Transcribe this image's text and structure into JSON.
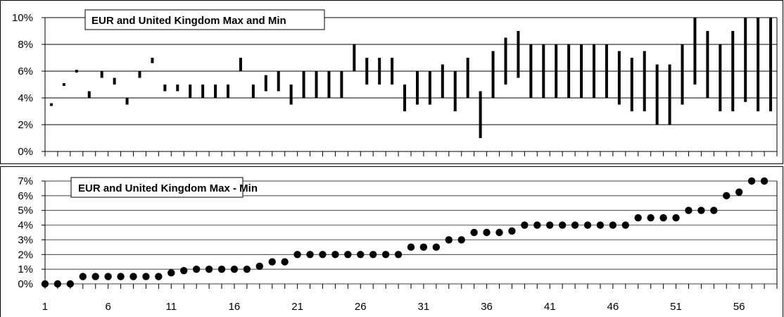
{
  "chart_data": [
    {
      "type": "range-bar",
      "title": "EUR and United Kingdom Max and Min",
      "xlabel": "",
      "ylabel": "",
      "ylim": [
        0,
        10
      ],
      "yticks": [
        "0%",
        "2%",
        "4%",
        "6%",
        "8%",
        "10%"
      ],
      "grid": true,
      "x": [
        1,
        2,
        3,
        4,
        5,
        6,
        7,
        8,
        9,
        10,
        11,
        12,
        13,
        14,
        15,
        16,
        17,
        18,
        19,
        20,
        21,
        22,
        23,
        24,
        25,
        26,
        27,
        28,
        29,
        30,
        31,
        32,
        33,
        34,
        35,
        36,
        37,
        38,
        39,
        40,
        41,
        42,
        43,
        44,
        45,
        46,
        47,
        48,
        49,
        50,
        51,
        52,
        53,
        54,
        55,
        56,
        57,
        58
      ],
      "min": [
        3.4,
        4.9,
        5.9,
        4.0,
        5.5,
        5.0,
        3.5,
        5.5,
        6.6,
        4.5,
        4.5,
        4.0,
        4.0,
        4.0,
        4.0,
        6.0,
        4.0,
        4.5,
        4.5,
        3.5,
        4.0,
        4.0,
        4.0,
        4.0,
        6.0,
        5.0,
        5.0,
        5.0,
        3.0,
        3.5,
        3.5,
        4.0,
        3.0,
        4.0,
        1.0,
        4.0,
        5.0,
        5.5,
        4.0,
        4.0,
        4.0,
        4.0,
        4.0,
        4.0,
        4.0,
        3.5,
        3.0,
        3.0,
        2.0,
        2.0,
        3.5,
        5.0,
        4.0,
        3.0,
        3.0,
        3.7,
        3.0,
        3.0
      ],
      "max": [
        3.6,
        5.1,
        6.1,
        4.5,
        6.0,
        5.5,
        4.0,
        6.0,
        7.0,
        5.0,
        5.0,
        5.0,
        5.0,
        5.0,
        5.0,
        7.0,
        5.0,
        5.7,
        6.0,
        5.0,
        6.0,
        6.0,
        6.0,
        6.0,
        8.0,
        7.0,
        7.0,
        7.0,
        5.0,
        6.0,
        6.0,
        6.5,
        6.0,
        7.0,
        4.5,
        7.5,
        8.5,
        9.0,
        8.0,
        8.0,
        8.0,
        8.0,
        8.0,
        8.0,
        8.0,
        7.5,
        7.0,
        7.5,
        6.5,
        6.5,
        8.0,
        10.0,
        9.0,
        8.0,
        9.0,
        10.0,
        10.0,
        10.0
      ]
    },
    {
      "type": "scatter",
      "title": "EUR and United Kingdom Max - Min",
      "xlabel": "",
      "ylabel": "",
      "ylim": [
        0,
        7
      ],
      "yticks": [
        "0%",
        "1%",
        "2%",
        "3%",
        "4%",
        "5%",
        "6%",
        "7%"
      ],
      "xticks": [
        "1",
        "6",
        "11",
        "16",
        "21",
        "26",
        "31",
        "36",
        "41",
        "46",
        "51",
        "56"
      ],
      "grid": true,
      "x": [
        1,
        2,
        3,
        4,
        5,
        6,
        7,
        8,
        9,
        10,
        11,
        12,
        13,
        14,
        15,
        16,
        17,
        18,
        19,
        20,
        21,
        22,
        23,
        24,
        25,
        26,
        27,
        28,
        29,
        30,
        31,
        32,
        33,
        34,
        35,
        36,
        37,
        38,
        39,
        40,
        41,
        42,
        43,
        44,
        45,
        46,
        47,
        48,
        49,
        50,
        51,
        52,
        53,
        54,
        55,
        56,
        57,
        58
      ],
      "y": [
        0,
        0,
        0,
        0.5,
        0.5,
        0.5,
        0.5,
        0.5,
        0.5,
        0.5,
        0.75,
        0.9,
        1,
        1,
        1,
        1,
        1,
        1.2,
        1.5,
        1.5,
        2,
        2,
        2,
        2,
        2,
        2,
        2,
        2,
        2,
        2.5,
        2.5,
        2.5,
        3,
        3,
        3.5,
        3.5,
        3.5,
        3.6,
        4,
        4,
        4,
        4,
        4,
        4,
        4,
        4,
        4,
        4.5,
        4.5,
        4.5,
        4.5,
        5,
        5,
        5,
        6,
        6.25,
        7,
        7
      ]
    }
  ]
}
